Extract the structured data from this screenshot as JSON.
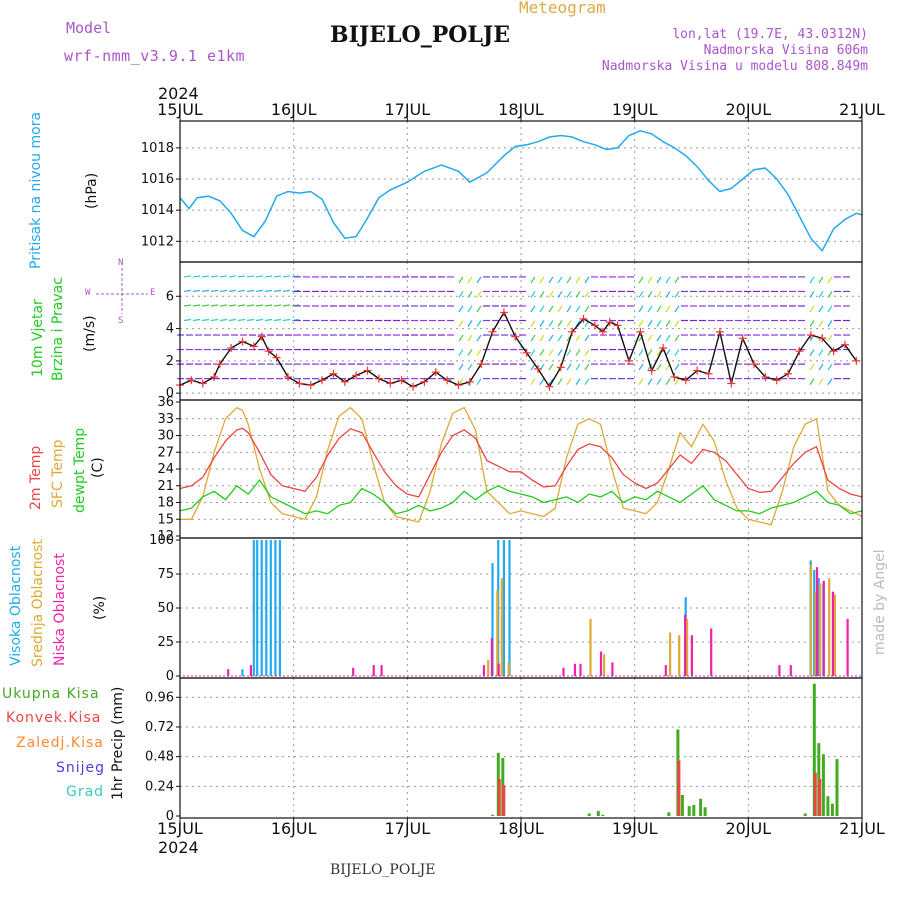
{
  "header": {
    "model_label": "Model",
    "model_value": "wrf-nmm_v3.9.1 e1km",
    "station": "BIJELO_POLJE",
    "meteogram_label": "Meteogram",
    "lonlat": "lon,lat (19.7E, 43.0312N)",
    "elevation": "Nadmorska Visina 606m",
    "model_elevation": "Nadmorska Visina u modelu 808.849m",
    "year_top": "2024",
    "year_bottom": "2024",
    "footer_station": "BIJELO_POLJE",
    "credit": "made by Angel"
  },
  "colors": {
    "pressure": "#22aaee",
    "wind_label": "#22cc22",
    "temp": "#ee4444",
    "sfc": "#ddaa33",
    "dew": "#22cc22",
    "cloud_high": "#22aaee",
    "cloud_mid": "#ddaa33",
    "cloud_low": "#ee22aa",
    "rain_total": "#44aa22",
    "rain_conv": "#ee4444",
    "rain_frozen": "#ff8833",
    "snow": "#4444dd",
    "hail": "#33ccbb",
    "header_purple": "#aa55cc",
    "meteogram": "#ddaa44"
  },
  "chart_data": [
    {
      "type": "line",
      "panel": "pressure",
      "ylabel_title": "Pritisak na nivou mora",
      "ylabel_unit": "(hPa)",
      "ylim": [
        1010.8,
        1019.6
      ],
      "yticks": [
        "1012",
        "1014",
        "1016",
        "1018"
      ],
      "x_unit": "days since 15JUL 00 UTC",
      "xticks": [
        "15JUL",
        "16JUL",
        "17JUL",
        "18JUL",
        "19JUL",
        "20JUL",
        "21JUL"
      ],
      "series": [
        {
          "name": "Pritisak",
          "x": [
            0,
            0.08,
            0.15,
            0.25,
            0.35,
            0.45,
            0.55,
            0.65,
            0.75,
            0.85,
            0.95,
            1.05,
            1.15,
            1.25,
            1.35,
            1.45,
            1.55,
            1.65,
            1.75,
            1.85,
            2.0,
            2.15,
            2.3,
            2.45,
            2.55,
            2.7,
            2.85,
            2.95,
            3.05,
            3.15,
            3.25,
            3.35,
            3.45,
            3.55,
            3.65,
            3.75,
            3.85,
            3.95,
            4.05,
            4.15,
            4.25,
            4.35,
            4.45,
            4.55,
            4.65,
            4.75,
            4.85,
            4.95,
            5.05,
            5.15,
            5.25,
            5.35,
            5.45,
            5.5,
            5.55,
            5.65,
            5.75,
            5.85,
            5.95,
            6.0
          ],
          "y": [
            1014.8,
            1014.1,
            1014.8,
            1014.9,
            1014.6,
            1013.8,
            1012.7,
            1012.3,
            1013.3,
            1014.9,
            1015.2,
            1015.1,
            1015.2,
            1014.7,
            1013.2,
            1012.2,
            1012.3,
            1013.5,
            1014.8,
            1015.3,
            1015.8,
            1016.5,
            1016.9,
            1016.5,
            1015.8,
            1016.4,
            1017.5,
            1018.1,
            1018.2,
            1018.4,
            1018.7,
            1018.8,
            1018.7,
            1018.4,
            1018.2,
            1017.9,
            1018.0,
            1018.8,
            1019.1,
            1018.9,
            1018.4,
            1018.0,
            1017.5,
            1016.8,
            1015.9,
            1015.2,
            1015.4,
            1016.0,
            1016.6,
            1016.7,
            1016.0,
            1015.0,
            1013.6,
            1012.9,
            1012.2,
            1011.4,
            1012.8,
            1013.4,
            1013.8,
            1013.7
          ]
        }
      ]
    },
    {
      "type": "line",
      "panel": "wind",
      "ylabel_title_1": "10m Vjetar",
      "ylabel_title_2": "Brzina i Pravac",
      "ylabel_unit": "(m/s)",
      "compass": {
        "n": "N",
        "s": "S",
        "e": "E",
        "w": "W"
      },
      "ylim": [
        -0.3,
        8.0
      ],
      "yticks": [
        "0",
        "2",
        "4",
        "6"
      ],
      "series": [
        {
          "name": "Brzina",
          "x": [
            0,
            0.1,
            0.2,
            0.3,
            0.35,
            0.45,
            0.55,
            0.65,
            0.72,
            0.78,
            0.85,
            0.95,
            1.05,
            1.15,
            1.25,
            1.35,
            1.45,
            1.55,
            1.65,
            1.75,
            1.85,
            1.95,
            2.05,
            2.15,
            2.25,
            2.35,
            2.45,
            2.55,
            2.65,
            2.75,
            2.85,
            2.95,
            3.05,
            3.15,
            3.25,
            3.35,
            3.45,
            3.55,
            3.65,
            3.72,
            3.78,
            3.85,
            3.95,
            4.05,
            4.15,
            4.25,
            4.35,
            4.45,
            4.55,
            4.65,
            4.75,
            4.85,
            4.95,
            5.05,
            5.15,
            5.25,
            5.35,
            5.45,
            5.55,
            5.65,
            5.75,
            5.85,
            5.95
          ],
          "y": [
            0.5,
            0.8,
            0.6,
            1.0,
            1.8,
            2.8,
            3.2,
            2.9,
            3.5,
            2.6,
            2.2,
            1.0,
            0.6,
            0.5,
            0.8,
            1.2,
            0.7,
            1.1,
            1.4,
            0.9,
            0.6,
            0.8,
            0.4,
            0.7,
            1.3,
            0.8,
            0.5,
            0.7,
            1.8,
            3.8,
            5.0,
            3.5,
            2.5,
            1.5,
            0.4,
            1.6,
            3.8,
            4.6,
            4.2,
            3.8,
            4.4,
            4.2,
            2.0,
            3.8,
            1.4,
            2.8,
            1.0,
            0.8,
            1.4,
            1.2,
            3.8,
            0.6,
            3.4,
            1.8,
            1.0,
            0.8,
            1.2,
            2.6,
            3.6,
            3.4,
            2.6,
            3.0,
            2.0
          ]
        }
      ]
    },
    {
      "type": "line",
      "panel": "temperature",
      "ylabel_t2": "2m Temp",
      "ylabel_sfc": "SFC Temp",
      "ylabel_dew": "dewpt Temp",
      "ylabel_unit": "(C)",
      "ylim": [
        12,
        36
      ],
      "yticks": [
        "12",
        "15",
        "18",
        "21",
        "24",
        "27",
        "30",
        "33",
        "36"
      ],
      "series": [
        {
          "name": "2m Temp",
          "x": [
            0,
            0.1,
            0.2,
            0.3,
            0.4,
            0.5,
            0.55,
            0.6,
            0.7,
            0.8,
            0.9,
            1.0,
            1.1,
            1.2,
            1.3,
            1.4,
            1.5,
            1.6,
            1.7,
            1.8,
            1.9,
            2.0,
            2.1,
            2.2,
            2.3,
            2.4,
            2.5,
            2.6,
            2.7,
            2.8,
            2.9,
            3.0,
            3.1,
            3.2,
            3.3,
            3.4,
            3.5,
            3.6,
            3.7,
            3.8,
            3.9,
            4.0,
            4.1,
            4.2,
            4.3,
            4.4,
            4.5,
            4.6,
            4.7,
            4.8,
            4.9,
            5.0,
            5.1,
            5.2,
            5.3,
            5.4,
            5.5,
            5.6,
            5.7,
            5.8,
            5.9,
            6.0
          ],
          "y": [
            20.5,
            21.0,
            22.5,
            26.0,
            29.0,
            31.0,
            31.3,
            30.5,
            27.0,
            23.0,
            21.0,
            20.5,
            20.0,
            22.5,
            26.5,
            29.5,
            31.2,
            30.5,
            27.0,
            23.5,
            21.0,
            19.5,
            19.0,
            23.0,
            27.0,
            30.0,
            31.0,
            29.5,
            25.5,
            24.5,
            23.5,
            23.5,
            22.0,
            20.8,
            21.0,
            24.5,
            27.5,
            28.5,
            28.0,
            26.0,
            23.0,
            21.5,
            20.5,
            21.5,
            24.0,
            26.5,
            25.0,
            27.5,
            27.0,
            25.5,
            23.0,
            20.5,
            19.8,
            20.0,
            22.5,
            25.0,
            27.0,
            28.0,
            22.0,
            20.5,
            19.5,
            19.0
          ]
        },
        {
          "name": "SFC Temp",
          "x": [
            0,
            0.1,
            0.2,
            0.3,
            0.4,
            0.5,
            0.55,
            0.6,
            0.7,
            0.8,
            0.9,
            1.0,
            1.1,
            1.2,
            1.3,
            1.4,
            1.5,
            1.6,
            1.7,
            1.8,
            1.9,
            2.0,
            2.1,
            2.2,
            2.3,
            2.4,
            2.5,
            2.6,
            2.7,
            2.8,
            2.9,
            3.0,
            3.1,
            3.2,
            3.3,
            3.4,
            3.5,
            3.6,
            3.7,
            3.8,
            3.9,
            4.0,
            4.1,
            4.2,
            4.3,
            4.4,
            4.5,
            4.6,
            4.7,
            4.8,
            4.9,
            5.0,
            5.1,
            5.2,
            5.3,
            5.4,
            5.5,
            5.6,
            5.7,
            5.8,
            5.9,
            6.0
          ],
          "y": [
            15.0,
            15.0,
            19.0,
            27.0,
            33.0,
            35.0,
            34.5,
            32.0,
            24.0,
            18.0,
            16.0,
            15.5,
            15.0,
            19.0,
            27.5,
            33.5,
            35.0,
            33.0,
            25.0,
            18.0,
            15.5,
            15.0,
            14.5,
            20.0,
            28.5,
            34.0,
            35.0,
            31.0,
            20.0,
            18.0,
            16.0,
            16.5,
            16.0,
            15.5,
            17.0,
            26.0,
            32.0,
            33.0,
            32.0,
            24.0,
            17.0,
            16.5,
            16.0,
            18.0,
            24.0,
            30.5,
            28.0,
            32.0,
            29.0,
            22.0,
            17.0,
            15.0,
            14.5,
            14.0,
            20.0,
            28.0,
            32.0,
            33.0,
            20.0,
            17.5,
            16.5,
            15.5
          ]
        },
        {
          "name": "dewpt Temp",
          "x": [
            0,
            0.1,
            0.2,
            0.3,
            0.4,
            0.5,
            0.6,
            0.7,
            0.8,
            0.9,
            1.0,
            1.1,
            1.2,
            1.3,
            1.4,
            1.5,
            1.6,
            1.7,
            1.8,
            1.9,
            2.0,
            2.1,
            2.2,
            2.3,
            2.4,
            2.5,
            2.6,
            2.7,
            2.8,
            2.9,
            3.0,
            3.1,
            3.2,
            3.3,
            3.4,
            3.5,
            3.6,
            3.7,
            3.8,
            3.9,
            4.0,
            4.1,
            4.2,
            4.3,
            4.4,
            4.5,
            4.6,
            4.7,
            4.8,
            4.9,
            5.0,
            5.1,
            5.2,
            5.3,
            5.4,
            5.5,
            5.6,
            5.7,
            5.8,
            5.9,
            6.0
          ],
          "y": [
            16.5,
            17.0,
            19.0,
            20.0,
            18.5,
            21.0,
            19.5,
            22.0,
            19.0,
            18.0,
            17.0,
            16.0,
            16.5,
            16.0,
            17.5,
            18.0,
            20.5,
            19.5,
            18.0,
            16.0,
            16.5,
            17.5,
            16.5,
            17.0,
            18.0,
            20.0,
            18.5,
            20.0,
            21.0,
            20.0,
            19.5,
            19.0,
            18.0,
            18.5,
            19.0,
            18.0,
            19.5,
            19.0,
            20.0,
            18.0,
            19.0,
            18.5,
            20.0,
            19.0,
            18.0,
            19.5,
            21.0,
            18.5,
            17.5,
            16.5,
            16.5,
            16.0,
            17.0,
            17.5,
            18.0,
            19.0,
            20.0,
            18.0,
            17.5,
            16.0,
            16.5
          ]
        }
      ]
    },
    {
      "type": "bar",
      "panel": "clouds",
      "ylabel_high": "Visoka Oblacnost",
      "ylabel_mid": "Srednja Oblacnost",
      "ylabel_low": "Niska Oblacnost",
      "ylabel_unit": "(%)",
      "ylim": [
        0,
        100
      ],
      "yticks": [
        "0",
        "25",
        "50",
        "75",
        "100"
      ],
      "series": [
        {
          "name": "Visoka",
          "x": [
            0.55,
            0.65,
            0.68,
            0.72,
            0.76,
            0.8,
            0.84,
            0.88,
            2.75,
            2.8,
            2.85,
            2.9,
            4.45,
            5.55,
            5.58,
            5.62,
            5.66
          ],
          "y": [
            5,
            100,
            100,
            100,
            100,
            100,
            100,
            100,
            83,
            100,
            100,
            100,
            58,
            85,
            78,
            72,
            68
          ]
        },
        {
          "name": "Srednja",
          "x": [
            2.7,
            2.78,
            2.82,
            2.88,
            3.6,
            3.72,
            4.3,
            4.38,
            4.45,
            5.54,
            5.58,
            5.62,
            5.7,
            5.75
          ],
          "y": [
            12,
            63,
            72,
            10,
            42,
            16,
            32,
            30,
            42,
            82,
            62,
            68,
            72,
            60
          ]
        },
        {
          "name": "Niska",
          "x": [
            0.4,
            0.6,
            1.5,
            1.68,
            1.75,
            2.65,
            2.72,
            2.78,
            3.35,
            3.45,
            3.5,
            3.68,
            3.78,
            4.25,
            4.42,
            4.48,
            4.65,
            5.25,
            5.35,
            5.58,
            5.64,
            5.72,
            5.85
          ],
          "y": [
            5,
            8,
            6,
            8,
            8,
            8,
            28,
            9,
            6,
            9,
            9,
            18,
            10,
            8,
            45,
            30,
            35,
            8,
            8,
            80,
            70,
            62,
            42
          ]
        }
      ]
    },
    {
      "type": "bar",
      "panel": "precip",
      "labels": [
        "Ukupna Kisa",
        "Konvek.Kisa",
        "Zaledj.Kisa",
        "Snijeg",
        "Grad"
      ],
      "ylabel_unit": "1hr Precip (mm)",
      "ylim": [
        0,
        1.1
      ],
      "yticks": [
        "0",
        "0.24",
        "0.48",
        "0.72",
        "0.96"
      ],
      "series": [
        {
          "name": "Ukupna Kisa",
          "x": [
            2.75,
            2.8,
            2.84,
            3.6,
            3.68,
            3.72,
            4.3,
            4.38,
            4.42,
            4.48,
            4.52,
            4.58,
            4.62,
            5.5,
            5.58,
            5.62,
            5.66,
            5.7,
            5.74,
            5.78
          ],
          "y": [
            0.01,
            0.51,
            0.47,
            0.02,
            0.04,
            0.01,
            0.03,
            0.7,
            0.17,
            0.08,
            0.09,
            0.14,
            0.07,
            0.02,
            1.07,
            0.59,
            0.5,
            0.16,
            0.1,
            0.46
          ]
        },
        {
          "name": "Konvek.Kisa",
          "x": [
            2.8,
            2.84,
            4.38,
            5.58,
            5.62
          ],
          "y": [
            0.3,
            0.25,
            0.45,
            0.35,
            0.3
          ]
        }
      ]
    }
  ]
}
